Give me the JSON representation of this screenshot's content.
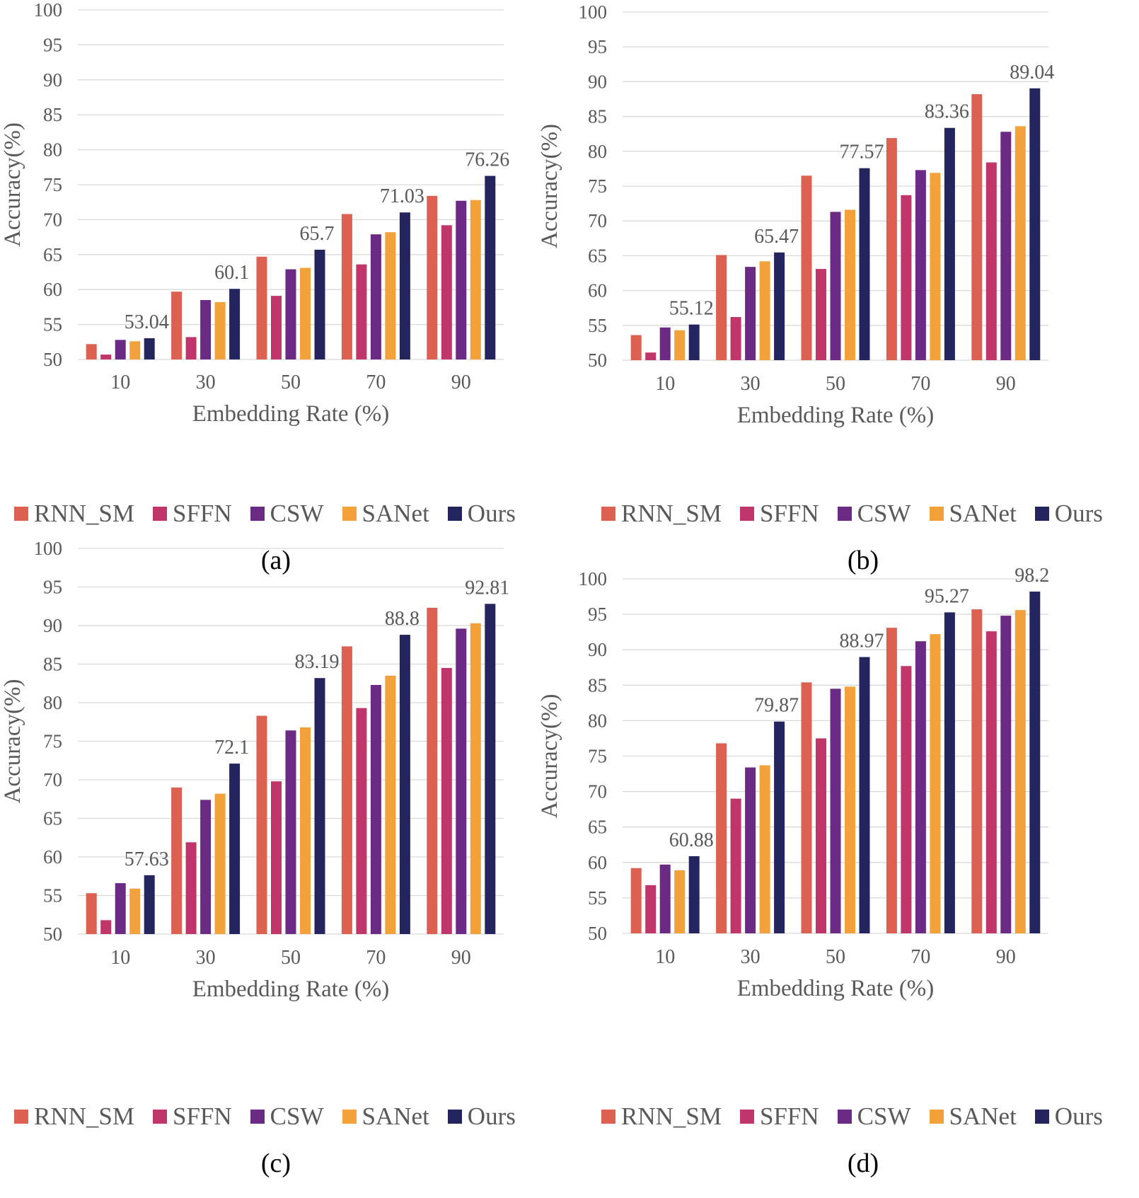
{
  "figure": {
    "series_names": [
      "RNN_SM",
      "SFFN",
      "CSW",
      "SANet",
      "Ours"
    ],
    "colors": {
      "RNN_SM": "#dc6151",
      "SFFN": "#c0366a",
      "CSW": "#6b2b84",
      "SANet": "#f2a13b",
      "Ours": "#24245e"
    }
  },
  "chart_data": [
    {
      "type": "bar",
      "panel": "a",
      "caption": "(a)",
      "xlabel": "Embedding Rate (%)",
      "ylabel": "Accuracy(%)",
      "ylim": [
        50,
        100
      ],
      "yticks": [
        "50",
        "55",
        "60",
        "65",
        "70",
        "75",
        "80",
        "85",
        "90",
        "95",
        "100"
      ],
      "categories": [
        "10",
        "30",
        "50",
        "70",
        "90"
      ],
      "series": [
        {
          "name": "RNN_SM",
          "values": [
            52.2,
            59.7,
            64.7,
            70.8,
            73.4
          ]
        },
        {
          "name": "SFFN",
          "values": [
            50.7,
            53.2,
            59.1,
            63.6,
            69.2
          ]
        },
        {
          "name": "CSW",
          "values": [
            52.8,
            58.5,
            62.9,
            67.9,
            72.7
          ]
        },
        {
          "name": "SANet",
          "values": [
            52.6,
            58.2,
            63.1,
            68.2,
            72.8
          ]
        },
        {
          "name": "Ours",
          "values": [
            53.04,
            60.1,
            65.7,
            71.03,
            76.26
          ]
        }
      ],
      "data_labels": [
        "53.04",
        "60.1",
        "65.7",
        "71.03",
        "76.26"
      ]
    },
    {
      "type": "bar",
      "panel": "b",
      "caption": "(b)",
      "xlabel": "Embedding Rate (%)",
      "ylabel": "Accuracy(%)",
      "ylim": [
        50,
        100
      ],
      "yticks": [
        "50",
        "55",
        "60",
        "65",
        "70",
        "75",
        "80",
        "85",
        "90",
        "95",
        "100"
      ],
      "categories": [
        "10",
        "30",
        "50",
        "70",
        "90"
      ],
      "series": [
        {
          "name": "RNN_SM",
          "values": [
            53.6,
            65.1,
            76.5,
            81.9,
            88.2
          ]
        },
        {
          "name": "SFFN",
          "values": [
            51.1,
            56.2,
            63.1,
            73.7,
            78.4
          ]
        },
        {
          "name": "CSW",
          "values": [
            54.7,
            63.4,
            71.3,
            77.3,
            82.8
          ]
        },
        {
          "name": "SANet",
          "values": [
            54.3,
            64.2,
            71.6,
            76.9,
            83.6
          ]
        },
        {
          "name": "Ours",
          "values": [
            55.12,
            65.47,
            77.57,
            83.36,
            89.04
          ]
        }
      ],
      "data_labels": [
        "55.12",
        "65.47",
        "77.57",
        "83.36",
        "89.04"
      ]
    },
    {
      "type": "bar",
      "panel": "c",
      "caption": "(c)",
      "xlabel": "Embedding Rate (%)",
      "ylabel": "Accuracy(%)",
      "ylim": [
        50,
        100
      ],
      "yticks": [
        "50",
        "55",
        "60",
        "65",
        "70",
        "75",
        "80",
        "85",
        "90",
        "95",
        "100"
      ],
      "categories": [
        "10",
        "30",
        "50",
        "70",
        "90"
      ],
      "series": [
        {
          "name": "RNN_SM",
          "values": [
            55.3,
            69.0,
            78.3,
            87.3,
            92.3
          ]
        },
        {
          "name": "SFFN",
          "values": [
            51.8,
            61.9,
            69.8,
            79.3,
            84.5
          ]
        },
        {
          "name": "CSW",
          "values": [
            56.6,
            67.4,
            76.4,
            82.3,
            89.6
          ]
        },
        {
          "name": "SANet",
          "values": [
            55.9,
            68.2,
            76.8,
            83.5,
            90.3
          ]
        },
        {
          "name": "Ours",
          "values": [
            57.63,
            72.1,
            83.19,
            88.8,
            92.81
          ]
        }
      ],
      "data_labels": [
        "57.63",
        "72.1",
        "83.19",
        "88.8",
        "92.81"
      ]
    },
    {
      "type": "bar",
      "panel": "d",
      "caption": "(d)",
      "xlabel": "Embedding Rate (%)",
      "ylabel": "Accuracy(%)",
      "ylim": [
        50,
        100
      ],
      "yticks": [
        "50",
        "55",
        "60",
        "65",
        "70",
        "75",
        "80",
        "85",
        "90",
        "95",
        "100"
      ],
      "categories": [
        "10",
        "30",
        "50",
        "70",
        "90"
      ],
      "series": [
        {
          "name": "RNN_SM",
          "values": [
            59.2,
            76.8,
            85.4,
            93.1,
            95.7
          ]
        },
        {
          "name": "SFFN",
          "values": [
            56.8,
            69.0,
            77.5,
            87.7,
            92.6
          ]
        },
        {
          "name": "CSW",
          "values": [
            59.7,
            73.4,
            84.5,
            91.2,
            94.8
          ]
        },
        {
          "name": "SANet",
          "values": [
            58.9,
            73.7,
            84.8,
            92.2,
            95.6
          ]
        },
        {
          "name": "Ours",
          "values": [
            60.88,
            79.87,
            88.97,
            95.27,
            98.2
          ]
        }
      ],
      "data_labels": [
        "60.88",
        "79.87",
        "88.97",
        "95.27",
        "98.2"
      ]
    }
  ]
}
